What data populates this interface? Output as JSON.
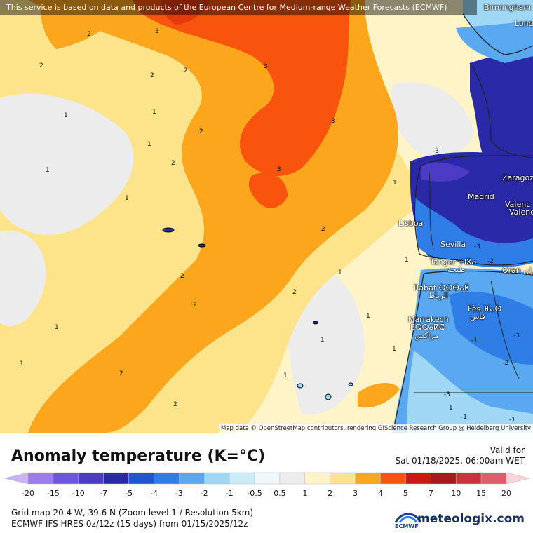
{
  "banner": "This service is based on data and products of the European Centre for Medium-range Weather Forecasts (ECMWF)",
  "attribution": "Map data © OpenStreetMap contributors, rendering GIScience Research Group @ Heidelberg University",
  "cities": [
    {
      "name": "Birmingham",
      "id": "birmingham"
    },
    {
      "name": "Lond",
      "id": "london"
    },
    {
      "name": "Zaragoz",
      "id": "zaragoza"
    },
    {
      "name": "Madrid",
      "id": "madrid"
    },
    {
      "name": "Valenc",
      "id": "valencia-1"
    },
    {
      "name": "Valenc",
      "id": "valencia-2"
    },
    {
      "name": "Lisboa",
      "id": "lisboa"
    },
    {
      "name": "Sevilla",
      "id": "sevilla"
    },
    {
      "name": "Tanger ⵜⵏⴵⴰ",
      "id": "tanger"
    },
    {
      "name": "طنجة",
      "id": "tanger-ar"
    },
    {
      "name": "Oran وهران",
      "id": "oran"
    },
    {
      "name": "Rabat ⵔⵔⴱⴰⵟ",
      "id": "rabat"
    },
    {
      "name": "الرباط",
      "id": "rabat-ar"
    },
    {
      "name": "Fès ⴼⴰⵙ",
      "id": "fes"
    },
    {
      "name": "فاس",
      "id": "fes-ar"
    },
    {
      "name": "Marrakech",
      "id": "marrakech"
    },
    {
      "name": "ⵎⵕⵕⴰⴽⵛ",
      "id": "marrakech-tz"
    },
    {
      "name": "مراكش",
      "id": "marrakech-ar"
    }
  ],
  "contour_labels": [
    "2",
    "3",
    "2",
    "2",
    "2",
    "3",
    "1",
    "1",
    "2",
    "1",
    "3",
    "1",
    "2",
    "1",
    "1",
    "2",
    "2",
    "1",
    "1",
    "2",
    "1",
    "1",
    "3",
    "2",
    "1",
    "2",
    "1",
    "1",
    "1",
    "2",
    "1",
    "-3",
    "-3",
    "-2",
    "-3",
    "-1",
    "-3",
    "-1",
    "-2",
    "-1"
  ],
  "legend": {
    "title": "Anomaly temperature (K=°C)",
    "valid_label": "Valid for",
    "valid_time": "Sat 01/18/2025, 06:00am WET",
    "ticks": [
      "-20",
      "-15",
      "-10",
      "-7",
      "-5",
      "-4",
      "-3",
      "-2",
      "-1",
      "-0.5",
      "0.5",
      "1",
      "2",
      "3",
      "4",
      "5",
      "7",
      "10",
      "15",
      "20"
    ],
    "colors": [
      "#c8b4f5",
      "#9c7bf0",
      "#6e55e0",
      "#4b3bc5",
      "#2a2aa8",
      "#1e55d0",
      "#2f7ee8",
      "#5aa9f0",
      "#9fd7f5",
      "#c9ecf7",
      "#eef8fb",
      "#ececec",
      "#fff4c7",
      "#fde48a",
      "#fca61d",
      "#f8540e",
      "#cc1a12",
      "#a8181c",
      "#c8333c",
      "#e05c6b",
      "#f09aa5",
      "#fbd3d8"
    ]
  },
  "info": {
    "grid": "Grid map 20.4 W, 39.6 N (Zoom level 1 / Resolution 5km)",
    "model": "ECMWF IFS HRES 0z/12z (15 days) from  01/15/2025/12z"
  },
  "brand": {
    "ecmwf": "ECMWF",
    "site": "meteologix.com"
  }
}
